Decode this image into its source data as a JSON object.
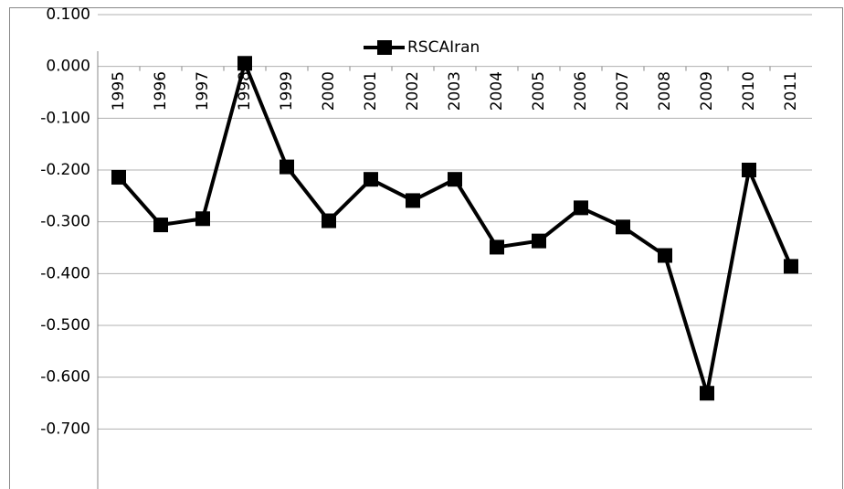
{
  "chart_data": {
    "type": "line",
    "categories": [
      "1995",
      "1996",
      "1997",
      "1998",
      "1999",
      "2000",
      "2001",
      "2002",
      "2003",
      "2004",
      "2005",
      "2006",
      "2007",
      "2008",
      "2009",
      "2010",
      "2011"
    ],
    "series": [
      {
        "name": "RSCAIran",
        "color": "#000000",
        "values": [
          -0.214,
          -0.306,
          -0.294,
          0.006,
          -0.194,
          -0.298,
          -0.218,
          -0.259,
          -0.218,
          -0.349,
          -0.337,
          -0.273,
          -0.31,
          -0.365,
          -0.631,
          -0.2,
          -0.386
        ]
      }
    ],
    "ylim": [
      -0.8,
      0.1
    ],
    "yticks": [
      {
        "value": 0.1,
        "label": "0.100"
      },
      {
        "value": 0,
        "label": "0.000"
      },
      {
        "value": -0.1,
        "label": "-0.100"
      },
      {
        "value": -0.2,
        "label": "-0.200"
      },
      {
        "value": -0.3,
        "label": "-0.300"
      },
      {
        "value": -0.4,
        "label": "-0.400"
      },
      {
        "value": -0.5,
        "label": "-0.500"
      },
      {
        "value": -0.6,
        "label": "-0.600"
      },
      {
        "value": -0.7,
        "label": "-0.700"
      }
    ],
    "grid": true,
    "legend": "top"
  }
}
